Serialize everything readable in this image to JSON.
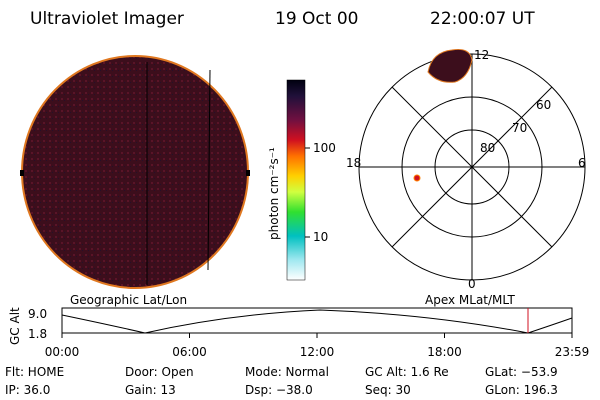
{
  "header": {
    "instrument": "Ultraviolet Imager",
    "date": "19 Oct 00",
    "time": "22:00:07 UT"
  },
  "colorbar": {
    "unit": "photon cm⁻²s⁻¹",
    "ticks": [
      "100",
      "10"
    ]
  },
  "polar": {
    "rings": [
      "60",
      "70",
      "80"
    ],
    "mlt": [
      "12",
      "18",
      "6",
      "0"
    ]
  },
  "panel_labels": {
    "left": "Geographic Lat/Lon",
    "right": "Apex MLat/MLT"
  },
  "altitude": {
    "axis_label": "GC Alt",
    "ticks": [
      "9.0",
      "1.8"
    ],
    "times": [
      "00:00",
      "06:00",
      "12:00",
      "18:00",
      "23:59"
    ]
  },
  "status": {
    "rows": [
      [
        "Flt: HOME",
        "Door: Open",
        "Mode: Normal",
        "GC Alt: 1.6 Re",
        "GLat: −53.9"
      ],
      [
        "IP: 36.0",
        "Gain: 13",
        "Dsp: −38.0",
        "Seq: 30",
        "GLon: 196.3"
      ]
    ]
  }
}
